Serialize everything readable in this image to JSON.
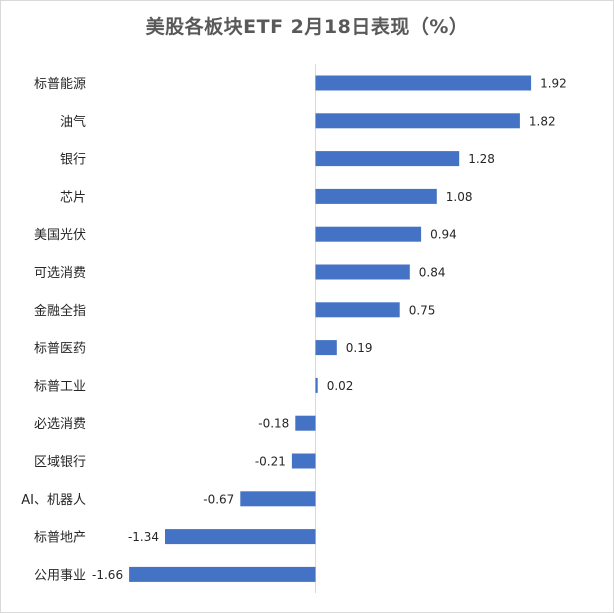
{
  "chart_data": {
    "type": "bar",
    "orientation": "horizontal",
    "title": "美股各板块ETF 2月18日表现（%）",
    "xlabel": "",
    "ylabel": "",
    "categories": [
      "标普能源",
      "油气",
      "银行",
      "芯片",
      "美国光伏",
      "可选消费",
      "金融全指",
      "标普医药",
      "标普工业",
      "必选消费",
      "区域银行",
      "AI、机器人",
      "标普地产",
      "公用事业"
    ],
    "values": [
      1.92,
      1.82,
      1.28,
      1.08,
      0.94,
      0.84,
      0.75,
      0.19,
      0.02,
      -0.18,
      -0.21,
      -0.67,
      -1.34,
      -1.66
    ],
    "value_labels": [
      "1.92",
      "1.82",
      "1.28",
      "1.08",
      "0.94",
      "0.84",
      "0.75",
      "0.19",
      "0.02",
      "-0.18",
      "-0.21",
      "-0.67",
      "-1.34",
      "-1.66"
    ],
    "xlim": [
      -1.7,
      2.1
    ],
    "grid": false,
    "legend": "none",
    "bar_color": "#4472C4"
  }
}
